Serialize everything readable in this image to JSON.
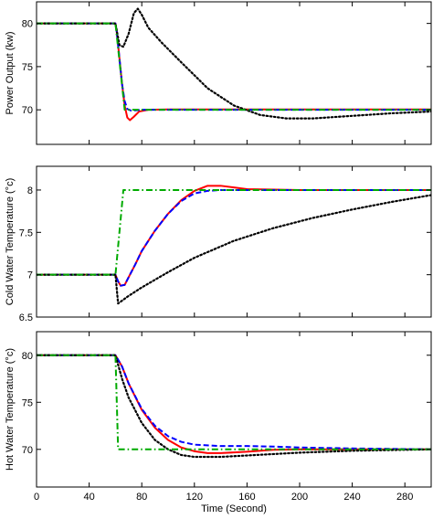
{
  "chart_data": [
    {
      "type": "line",
      "ylabel": "Power Output  (kw)",
      "xlim": [
        0,
        300
      ],
      "ylim": [
        66,
        82.5
      ],
      "yticks": [
        70,
        75,
        80
      ],
      "xticks": [],
      "grid": false,
      "legend": "none",
      "series": [
        {
          "color": "#ff0000",
          "style": "solid",
          "points": [
            [
              0,
              80
            ],
            [
              60,
              80
            ],
            [
              61,
              79
            ],
            [
              63,
              76
            ],
            [
              65,
              73
            ],
            [
              67,
              70.5
            ],
            [
              69,
              69.1
            ],
            [
              71,
              68.8
            ],
            [
              74,
              69.2
            ],
            [
              78,
              69.8
            ],
            [
              85,
              70.0
            ],
            [
              100,
              70.05
            ],
            [
              300,
              70.05
            ]
          ]
        },
        {
          "color": "#0000ff",
          "style": "dashed",
          "points": [
            [
              0,
              80
            ],
            [
              60,
              80
            ],
            [
              61,
              79
            ],
            [
              63,
              76
            ],
            [
              65,
              73
            ],
            [
              67,
              71
            ],
            [
              69,
              70.1
            ],
            [
              72,
              69.9
            ],
            [
              80,
              70
            ],
            [
              300,
              70
            ]
          ]
        },
        {
          "color": "#000000",
          "style": "dotted",
          "points": [
            [
              0,
              80
            ],
            [
              60,
              80
            ],
            [
              63,
              77.5
            ],
            [
              66,
              77.3
            ],
            [
              70,
              78.8
            ],
            [
              74,
              81.2
            ],
            [
              77,
              81.7
            ],
            [
              80,
              81
            ],
            [
              85,
              79.5
            ],
            [
              95,
              77.8
            ],
            [
              110,
              75.5
            ],
            [
              130,
              72.5
            ],
            [
              150,
              70.5
            ],
            [
              170,
              69.4
            ],
            [
              190,
              69.0
            ],
            [
              210,
              69.0
            ],
            [
              240,
              69.3
            ],
            [
              270,
              69.6
            ],
            [
              300,
              69.8
            ]
          ]
        },
        {
          "color": "#00aa00",
          "style": "dashdot",
          "points": [
            [
              0,
              80
            ],
            [
              60,
              80
            ],
            [
              67,
              70
            ],
            [
              300,
              70
            ]
          ]
        }
      ]
    },
    {
      "type": "line",
      "ylabel": "Cold Water Temperature (°c)",
      "xlim": [
        0,
        300
      ],
      "ylim": [
        6.5,
        8.28
      ],
      "yticks": [
        6.5,
        7,
        7.5,
        8
      ],
      "ytick_labels": [
        "6.5",
        "7",
        "7.5",
        "8"
      ],
      "xticks": [],
      "grid": false,
      "legend": "none",
      "series": [
        {
          "color": "#ff0000",
          "style": "solid",
          "points": [
            [
              0,
              7
            ],
            [
              60,
              7
            ],
            [
              62,
              6.92
            ],
            [
              64,
              6.87
            ],
            [
              67,
              6.88
            ],
            [
              70,
              6.97
            ],
            [
              75,
              7.12
            ],
            [
              80,
              7.28
            ],
            [
              90,
              7.52
            ],
            [
              100,
              7.72
            ],
            [
              110,
              7.88
            ],
            [
              120,
              7.99
            ],
            [
              130,
              8.05
            ],
            [
              140,
              8.05
            ],
            [
              150,
              8.03
            ],
            [
              160,
              8.01
            ],
            [
              200,
              8.0
            ],
            [
              300,
              8.0
            ]
          ]
        },
        {
          "color": "#0000ff",
          "style": "dashed",
          "points": [
            [
              0,
              7
            ],
            [
              60,
              7
            ],
            [
              62,
              6.92
            ],
            [
              64,
              6.87
            ],
            [
              67,
              6.88
            ],
            [
              70,
              6.97
            ],
            [
              75,
              7.12
            ],
            [
              80,
              7.28
            ],
            [
              90,
              7.52
            ],
            [
              100,
              7.72
            ],
            [
              110,
              7.87
            ],
            [
              120,
              7.96
            ],
            [
              130,
              7.99
            ],
            [
              140,
              8.0
            ],
            [
              300,
              8.0
            ]
          ]
        },
        {
          "color": "#000000",
          "style": "dotted",
          "points": [
            [
              0,
              7
            ],
            [
              60,
              7
            ],
            [
              62,
              6.66
            ],
            [
              70,
              6.75
            ],
            [
              80,
              6.85
            ],
            [
              100,
              7.03
            ],
            [
              120,
              7.2
            ],
            [
              150,
              7.4
            ],
            [
              180,
              7.55
            ],
            [
              210,
              7.67
            ],
            [
              240,
              7.77
            ],
            [
              270,
              7.86
            ],
            [
              300,
              7.94
            ]
          ]
        },
        {
          "color": "#00aa00",
          "style": "dashdot",
          "points": [
            [
              0,
              7
            ],
            [
              60,
              7
            ],
            [
              66,
              8.0
            ],
            [
              300,
              8.0
            ]
          ]
        }
      ]
    },
    {
      "type": "line",
      "xlabel": "Time (Second)",
      "ylabel": "Hot Water Temperature  (°c)",
      "xlim": [
        0,
        300
      ],
      "ylim": [
        66,
        82.5
      ],
      "yticks": [
        70,
        75,
        80
      ],
      "xticks": [
        0,
        40,
        80,
        120,
        160,
        200,
        240,
        280
      ],
      "grid": false,
      "legend": "none",
      "series": [
        {
          "color": "#ff0000",
          "style": "solid",
          "points": [
            [
              0,
              80
            ],
            [
              60,
              80
            ],
            [
              65,
              78.8
            ],
            [
              70,
              77
            ],
            [
              80,
              74.2
            ],
            [
              90,
              72.3
            ],
            [
              100,
              71
            ],
            [
              110,
              70.2
            ],
            [
              120,
              69.8
            ],
            [
              130,
              69.6
            ],
            [
              140,
              69.6
            ],
            [
              160,
              69.75
            ],
            [
              180,
              69.95
            ],
            [
              200,
              70.0
            ],
            [
              300,
              70.0
            ]
          ]
        },
        {
          "color": "#0000ff",
          "style": "dashed",
          "points": [
            [
              0,
              80
            ],
            [
              60,
              80
            ],
            [
              65,
              78.8
            ],
            [
              70,
              77
            ],
            [
              80,
              74.3
            ],
            [
              90,
              72.5
            ],
            [
              100,
              71.4
            ],
            [
              110,
              70.8
            ],
            [
              120,
              70.5
            ],
            [
              140,
              70.35
            ],
            [
              160,
              70.35
            ],
            [
              180,
              70.3
            ],
            [
              200,
              70.2
            ],
            [
              240,
              70.1
            ],
            [
              300,
              70.0
            ]
          ]
        },
        {
          "color": "#000000",
          "style": "dotted",
          "points": [
            [
              0,
              80
            ],
            [
              60,
              80
            ],
            [
              65,
              77.5
            ],
            [
              70,
              75.5
            ],
            [
              80,
              72.8
            ],
            [
              90,
              71
            ],
            [
              100,
              70
            ],
            [
              110,
              69.4
            ],
            [
              120,
              69.2
            ],
            [
              140,
              69.2
            ],
            [
              160,
              69.35
            ],
            [
              180,
              69.5
            ],
            [
              200,
              69.65
            ],
            [
              240,
              69.85
            ],
            [
              280,
              69.95
            ],
            [
              300,
              70.0
            ]
          ]
        },
        {
          "color": "#00aa00",
          "style": "dashdot",
          "points": [
            [
              0,
              80
            ],
            [
              60,
              80
            ],
            [
              62,
              70
            ],
            [
              300,
              70
            ]
          ]
        }
      ]
    }
  ]
}
